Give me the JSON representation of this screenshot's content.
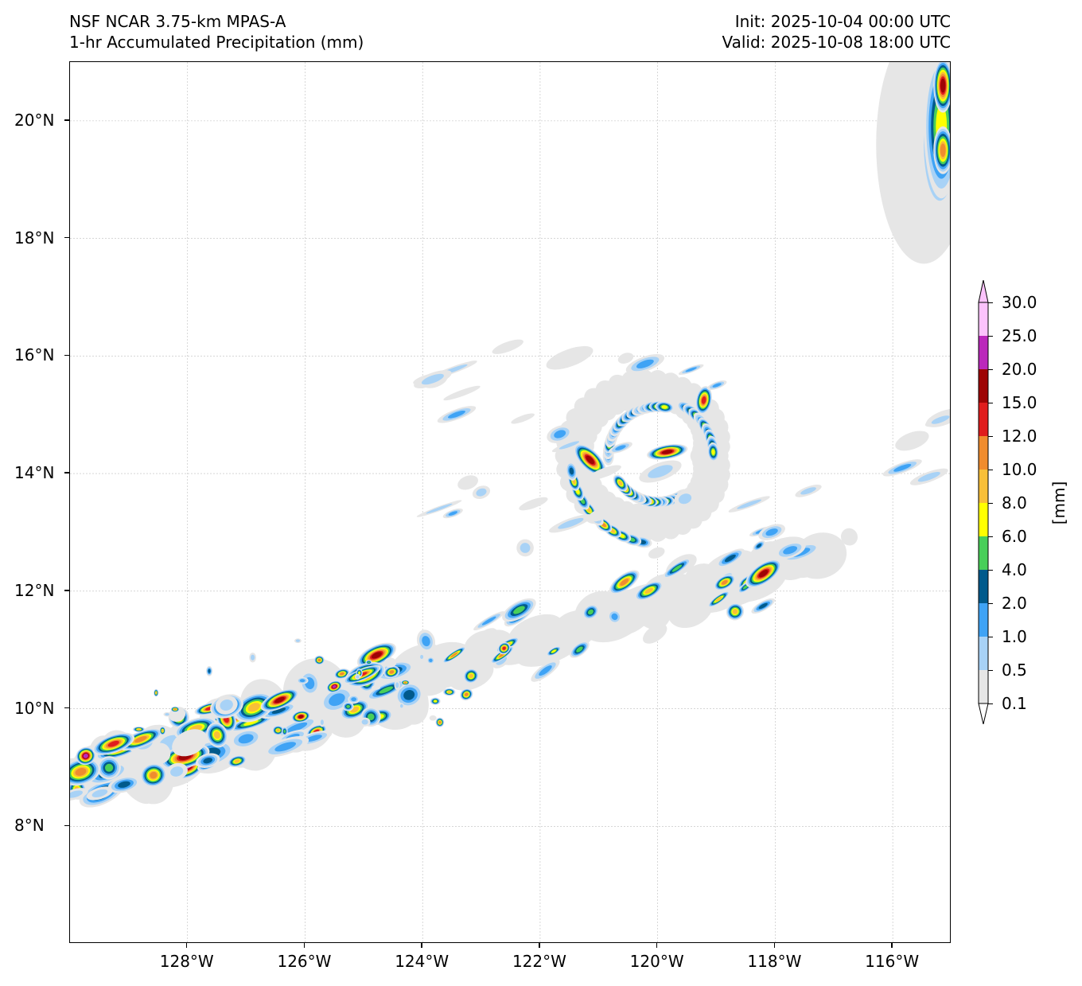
{
  "header": {
    "model": "NSF NCAR 3.75-km MPAS-A",
    "field": "1-hr Accumulated Precipitation (mm)",
    "init": "Init: 2025-10-04 00:00 UTC",
    "valid": "Valid: 2025-10-08 18:00 UTC"
  },
  "axes": {
    "lat_labels": [
      "20°N",
      "18°N",
      "16°N",
      "14°N",
      "12°N",
      "10°N",
      "8°N"
    ],
    "lon_labels": [
      "128°W",
      "126°W",
      "124°W",
      "122°W",
      "120°W",
      "118°W",
      "116°W"
    ],
    "lat_range": [
      6.0,
      21.0
    ],
    "lon_range": [
      -130.0,
      -115.0
    ],
    "gridlines": true
  },
  "colorbar": {
    "units": "[mm]",
    "levels": [
      "0.1",
      "0.5",
      "1.0",
      "2.0",
      "4.0",
      "6.0",
      "8.0",
      "10.0",
      "12.0",
      "15.0",
      "20.0",
      "25.0",
      "30.0"
    ],
    "colors": [
      "#e6e6e6",
      "#a8d2f6",
      "#3fa3f5",
      "#005a8c",
      "#48cf59",
      "#ffff00",
      "#f8bf38",
      "#f08c2e",
      "#e01d1d",
      "#9e0404",
      "#bb28bb",
      "#fcc3fc"
    ],
    "extend": "both"
  },
  "features": {
    "cyclone_center": {
      "lat": 14.3,
      "lon": -120.0
    },
    "itcz_band": {
      "from_lon": -130.0,
      "to_lon": -118.0,
      "lat_at_west": 8.8,
      "lat_at_east": 12.4
    },
    "ne_system": {
      "lat": 19.6,
      "lon": -115.2
    }
  }
}
